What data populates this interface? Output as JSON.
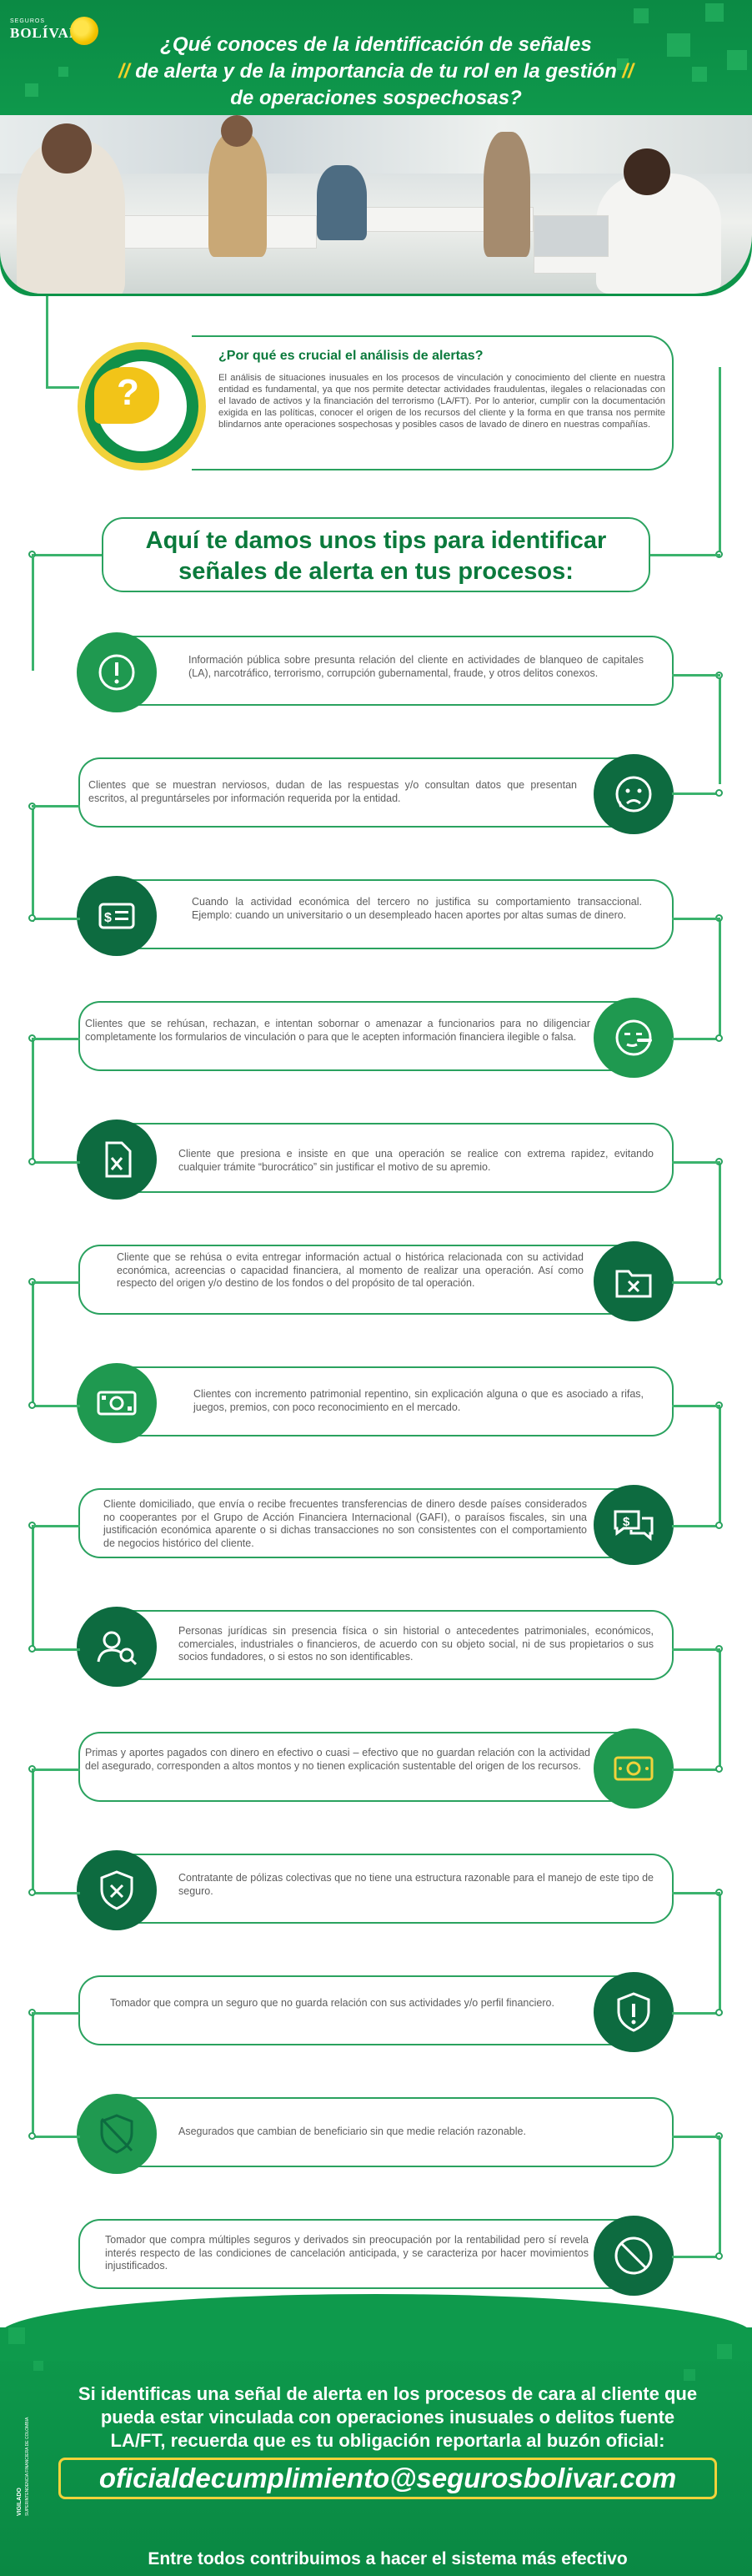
{
  "brand": {
    "small": "SEGUROS",
    "name": "BOLÍVAR"
  },
  "header": {
    "line1": "¿Qué conoces de la identificación de señales",
    "line2": "de alerta y de la importancia de tu rol en la gestión",
    "line3": "de operaciones sospechosas?"
  },
  "intro": {
    "title": "¿Por qué es crucial el análisis de alertas?",
    "body": "El análisis de situaciones inusuales en los procesos de vinculación y conocimiento del cliente en nuestra entidad es fundamental, ya que nos permite detectar actividades fraudulentas, ilegales o relacionadas con el lavado de activos y la financiación del terrorismo (LA/FT). Por lo anterior, cumplir con la documentación exigida en las políticas, conocer el origen de los recursos del cliente y la forma en que transa nos permite blindarnos ante operaciones sospechosas y posibles casos de lavado de dinero en nuestras compañías.",
    "icon": "question-bubble-icon"
  },
  "tips_heading": {
    "line1": "Aquí te damos unos tips para identificar",
    "line2": "señales de alerta en tus procesos:"
  },
  "tips": [
    {
      "text": "Información pública sobre presunta relación del cliente en actividades de blanqueo de capitales (LA), narcotráfico, terrorismo, corrupción gubernamental, fraude, y otros delitos conexos.",
      "icon": "alert-circle-icon"
    },
    {
      "text": "Clientes que se muestran nerviosos, dudan de las respuestas y/o consultan datos que presentan escritos, al preguntárseles por información requerida por la entidad.",
      "icon": "worried-face-icon"
    },
    {
      "text": "Cuando la actividad económica del tercero no justifica su comportamiento transaccional. Ejemplo: cuando un universitario o un desempleado hacen aportes por altas sumas de dinero.",
      "icon": "money-card-icon"
    },
    {
      "text": "Clientes que se rehúsan, rechazan, e intentan sobornar o amenazar a funcionarios para no diligenciar completamente los formularios de vinculación o para que le acepten información financiera ilegible o falsa.",
      "icon": "lying-face-icon"
    },
    {
      "text": "Cliente que presiona e insiste en que una operación se realice con extrema rapidez, evitando cualquier trámite “burocrático” sin justificar el motivo de su apremio.",
      "icon": "rejected-document-icon"
    },
    {
      "text": "Cliente que se rehúsa o evita entregar información actual o histórica relacionada con su actividad económica, acreencias o capacidad financiera, al momento de realizar una operación. Así como respecto del origen y/o destino de los fondos o del propósito de tal operación.",
      "icon": "rejected-folder-icon"
    },
    {
      "text": "Clientes con incremento patrimonial repentino, sin explicación alguna o que es asociado a rifas, juegos, premios, con poco reconocimiento en el mercado.",
      "icon": "banknote-icon"
    },
    {
      "text": "Cliente domiciliado, que envía o recibe frecuentes transferencias de dinero desde países considerados no cooperantes por el Grupo de Acción Financiera Internacional (GAFI), o paraísos fiscales, sin una justificación económica aparente o si dichas transacciones no son consistentes con el comportamiento de negocios histórico del cliente.",
      "icon": "money-chat-icon"
    },
    {
      "text": "Personas jurídicas sin presencia física o sin historial o antecedentes patrimoniales, económicos, comerciales, industriales o financieros, de acuerdo con su objeto social, ni de sus propietarios o sus socios fundadores, o si estos no son identificables.",
      "icon": "user-search-icon"
    },
    {
      "text": "Primas y aportes pagados con dinero en efectivo o cuasi – efectivo que no guardan relación con la actividad del asegurado, corresponden a altos montos y no tienen explicación sustentable del origen de los recursos.",
      "icon": "cash-icon"
    },
    {
      "text": "Contratante de pólizas colectivas que no tiene una estructura razonable para el manejo de este tipo de seguro.",
      "icon": "shield-x-icon"
    },
    {
      "text": "Tomador que compra un seguro que no guarda relación con sus actividades y/o perfil financiero.",
      "icon": "shield-alert-icon"
    },
    {
      "text": "Asegurados que cambian de beneficiario sin que medie relación razonable.",
      "icon": "shield-off-icon"
    },
    {
      "text": "Tomador que compra múltiples seguros y derivados sin preocupación por la rentabilidad pero sí revela interés respecto de las condiciones de cancelación anticipada, y se caracteriza por hacer movimientos injustificados.",
      "icon": "prohibited-icon"
    }
  ],
  "footer": {
    "line1": "Si identificas una señal de alerta en los procesos de cara al cliente que",
    "line2": "pueda estar vinculada con operaciones inusuales o delitos fuente",
    "line3": "LA/FT, recuerda que es tu obligación reportarla al buzón oficial:",
    "email": "oficialdecumplimiento@segurosbolivar.com",
    "closing": "Entre todos contribuimos a hacer el sistema más efectivo",
    "vigilado": "VIGILADO",
    "vigilado_small": "SUPERINTENDENCIA FINANCIERA DE COLOMBIA"
  },
  "colors": {
    "primary_green": "#109049",
    "dark_green": "#0d6b40",
    "accent_yellow": "#f1d23b",
    "heading_green": "#0b7a3c"
  }
}
